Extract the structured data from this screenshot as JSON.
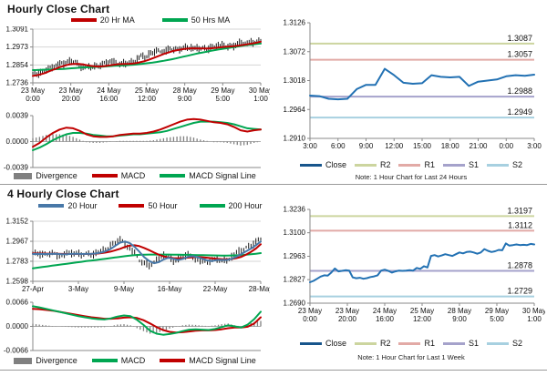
{
  "colors": {
    "red": "#c00000",
    "green": "#00a651",
    "steel_blue": "#4878a8",
    "close_blue": "#2271b3",
    "close_legend": "#17558c",
    "r2_olive": "#ccd59f",
    "r1_pink": "#e2aaa6",
    "s1_purple": "#a5a2cb",
    "s2_cyan": "#a7d0e0",
    "divergence_gray": "#808080",
    "candle_black": "#1a1a1a"
  },
  "chart_data": [
    {
      "title": "Hourly Close Chart",
      "type": "candlestick",
      "ylim": [
        1.2736,
        1.3091
      ],
      "yticks": [
        "1.3091",
        "1.2973",
        "1.2854",
        "1.2736"
      ],
      "xticks": [
        [
          "23 May",
          "0:00"
        ],
        [
          "23 May",
          "20:00"
        ],
        [
          "24 May",
          "16:00"
        ],
        [
          "25 May",
          "12:00"
        ],
        [
          "28 May",
          "9:00"
        ],
        [
          "29 May",
          "5:00"
        ],
        [
          "30 May",
          "1:00"
        ]
      ],
      "series": [
        {
          "name": "Close",
          "type": "candle",
          "color": "#1a1a1a",
          "values": [
            1.279,
            1.2794,
            1.28,
            1.2815,
            1.2832,
            1.2845,
            1.2852,
            1.2858,
            1.2862,
            1.2872,
            1.288,
            1.2876,
            1.2855,
            1.2842,
            1.2836,
            1.2838,
            1.2842,
            1.2848,
            1.286,
            1.2875,
            1.2878,
            1.287,
            1.2862,
            1.2858,
            1.2866,
            1.2872,
            1.288,
            1.2895,
            1.291,
            1.2902,
            1.292,
            1.2938,
            1.2948,
            1.295,
            1.2944,
            1.2952,
            1.2956,
            1.2955,
            1.296,
            1.2968,
            1.2975,
            1.2968,
            1.2958,
            1.2962,
            1.2966,
            1.2958,
            1.297,
            1.2982,
            1.299,
            1.298,
            1.2974,
            1.2976,
            1.2982,
            1.2995,
            1.3008,
            1.3,
            1.2995,
            1.3,
            1.3006,
            1.3014
          ]
        },
        {
          "name": "20 Hr MA",
          "type": "line",
          "color": "#c00000",
          "values": [
            1.2782,
            1.2786,
            1.2792,
            1.28,
            1.281,
            1.282,
            1.283,
            1.284,
            1.2848,
            1.2855,
            1.286,
            1.2862,
            1.2861,
            1.2858,
            1.2853,
            1.2848,
            1.2845,
            1.2844,
            1.2845,
            1.2848,
            1.2852,
            1.2856,
            1.2859,
            1.286,
            1.2861,
            1.2862,
            1.2864,
            1.2868,
            1.2874,
            1.288,
            1.2888,
            1.2898,
            1.2908,
            1.2918,
            1.2928,
            1.2936,
            1.2944,
            1.295,
            1.2955,
            1.2959,
            1.2962,
            1.2964,
            1.2964,
            1.2963,
            1.2963,
            1.2963,
            1.2964,
            1.2966,
            1.2969,
            1.2972,
            1.2974,
            1.2976,
            1.2978,
            1.2981,
            1.2985,
            1.2989,
            1.2993,
            1.2997,
            1.3002,
            1.3008
          ]
        },
        {
          "name": "50 Hrs MA",
          "type": "line",
          "color": "#00a651",
          "values": [
            1.282,
            1.2821,
            1.2822,
            1.2823,
            1.2824,
            1.2825,
            1.2826,
            1.2827,
            1.2828,
            1.283,
            1.2832,
            1.2834,
            1.2836,
            1.2838,
            1.2839,
            1.284,
            1.2841,
            1.2842,
            1.2843,
            1.2845,
            1.2847,
            1.2849,
            1.285,
            1.2851,
            1.2852,
            1.2854,
            1.2856,
            1.2858,
            1.2861,
            1.2864,
            1.2867,
            1.287,
            1.2874,
            1.2878,
            1.2882,
            1.2887,
            1.2892,
            1.2897,
            1.2903,
            1.2909,
            1.2915,
            1.2921,
            1.2927,
            1.2932,
            1.2937,
            1.2942,
            1.2947,
            1.2952,
            1.2956,
            1.296,
            1.2964,
            1.2968,
            1.2972,
            1.2976,
            1.298,
            1.2984,
            1.2987,
            1.299,
            1.2993,
            1.2996
          ]
        }
      ]
    },
    {
      "type": "macd",
      "ylim": [
        -0.0039,
        0.0039
      ],
      "yticks": [
        "0.0039",
        "0.0000",
        "-0.0039"
      ],
      "series": [
        {
          "name": "Divergence",
          "type": "bar",
          "color": "#808080",
          "values": [
            0.0005,
            0.0007,
            0.001,
            0.0011,
            0.0011,
            0.001,
            0.0007,
            0.0003,
            -0.0001,
            -0.0002,
            -0.0002,
            -0.0001,
            0.0,
            0.0001,
            0.0001,
            0.0001,
            0.0001,
            0.0001,
            0.0002,
            0.0004,
            0.0006,
            0.0007,
            0.0008,
            0.0008,
            0.0006,
            0.0003,
            0.0001,
            -0.0001,
            -0.0001,
            -0.0002,
            -0.0004,
            -0.0006,
            -0.0005,
            -0.0002,
            0.0
          ]
        },
        {
          "name": "MACD",
          "type": "line",
          "color": "#c00000",
          "values": [
            -0.0008,
            -0.0002,
            0.0006,
            0.0013,
            0.0018,
            0.0021,
            0.002,
            0.0016,
            0.0011,
            0.0008,
            0.0007,
            0.0007,
            0.0008,
            0.001,
            0.0011,
            0.0012,
            0.0012,
            0.0013,
            0.0015,
            0.0018,
            0.0022,
            0.0026,
            0.003,
            0.0033,
            0.0034,
            0.0033,
            0.0031,
            0.0029,
            0.0028,
            0.0026,
            0.0022,
            0.0017,
            0.0015,
            0.0017,
            0.0018
          ]
        },
        {
          "name": "MACD Signal Line",
          "type": "line",
          "color": "#00a651",
          "values": [
            -0.0013,
            -0.0009,
            -0.0004,
            0.0002,
            0.0007,
            0.0011,
            0.0013,
            0.0013,
            0.0012,
            0.001,
            0.0009,
            0.0008,
            0.0008,
            0.0009,
            0.001,
            0.0011,
            0.0011,
            0.0012,
            0.0013,
            0.0014,
            0.0016,
            0.0019,
            0.0022,
            0.0025,
            0.0028,
            0.003,
            0.003,
            0.003,
            0.0029,
            0.0028,
            0.0026,
            0.0023,
            0.002,
            0.0019,
            0.0018
          ]
        }
      ]
    },
    {
      "type": "line",
      "note": "Note: 1 Hour Chart for Last 24 Hours",
      "ylim": [
        1.291,
        1.3126
      ],
      "yticks": [
        "1.3126",
        "1.3072",
        "1.3018",
        "1.2964",
        "1.2910"
      ],
      "xticks": [
        "3:00",
        "6:00",
        "9:00",
        "12:00",
        "15:00",
        "18:00",
        "21:00",
        "0:00",
        "3:00"
      ],
      "series": [
        {
          "name": "Close",
          "type": "line",
          "color": "#2271b3",
          "legend_color": "#17558c",
          "values": [
            1.299,
            1.2989,
            1.2984,
            1.2983,
            1.2984,
            1.3002,
            1.301,
            1.301,
            1.304,
            1.3028,
            1.3014,
            1.3012,
            1.3013,
            1.3028,
            1.3025,
            1.3024,
            1.3025,
            1.3008,
            1.3016,
            1.3018,
            1.302,
            1.3026,
            1.3028,
            1.3027,
            1.3029
          ]
        }
      ],
      "levels": [
        {
          "name": "R2",
          "label": "1.3087",
          "value": 1.3087,
          "color": "#ccd59f"
        },
        {
          "name": "R1",
          "label": "1.3057",
          "value": 1.3057,
          "color": "#e2aaa6"
        },
        {
          "name": "S1",
          "label": "1.2988",
          "value": 1.2988,
          "color": "#a5a2cb"
        },
        {
          "name": "S2",
          "label": "1.2949",
          "value": 1.2949,
          "color": "#a7d0e0"
        }
      ]
    },
    {
      "title": "4 Hourly Close Chart",
      "type": "candlestick",
      "ylim": [
        1.2598,
        1.3152
      ],
      "yticks": [
        "1.3152",
        "1.2967",
        "1.2783",
        "1.2598"
      ],
      "xticks": [
        "27-Apr",
        "3-May",
        "9-May",
        "16-May",
        "22-May",
        "28-May"
      ],
      "series": [
        {
          "name": "Close",
          "type": "candle",
          "color": "#1a1a1a",
          "values": [
            1.2848,
            1.2855,
            1.284,
            1.2852,
            1.286,
            1.2845,
            1.2838,
            1.285,
            1.2858,
            1.2852,
            1.2845,
            1.2855,
            1.285,
            1.2862,
            1.287,
            1.289,
            1.292,
            1.296,
            1.2985,
            1.295,
            1.29,
            1.285,
            1.279,
            1.276,
            1.2748,
            1.277,
            1.282,
            1.284,
            1.281,
            1.278,
            1.28,
            1.2835,
            1.2845,
            1.282,
            1.28,
            1.278,
            1.277,
            1.279,
            1.281,
            1.2785,
            1.28,
            1.2825,
            1.2855,
            1.288,
            1.2905,
            1.293,
            1.296,
            1.3
          ]
        },
        {
          "name": "20 Hour",
          "type": "line",
          "color": "#4878a8",
          "values": [
            1.285,
            1.2851,
            1.285,
            1.285,
            1.2852,
            1.2851,
            1.2848,
            1.2848,
            1.2851,
            1.2852,
            1.285,
            1.2851,
            1.2851,
            1.2855,
            1.2862,
            1.2875,
            1.2895,
            1.2925,
            1.2955,
            1.2965,
            1.295,
            1.2915,
            1.287,
            1.282,
            1.2785,
            1.2765,
            1.2775,
            1.28,
            1.2815,
            1.2805,
            1.2795,
            1.2805,
            1.2825,
            1.283,
            1.282,
            1.2805,
            1.279,
            1.2785,
            1.2795,
            1.2795,
            1.2795,
            1.2805,
            1.2825,
            1.285,
            1.2875,
            1.29,
            1.293,
            1.2965
          ]
        },
        {
          "name": "50 Hour",
          "type": "line",
          "color": "#c00000",
          "values": [
            1.2855,
            1.2855,
            1.2854,
            1.2853,
            1.2853,
            1.2852,
            1.2851,
            1.285,
            1.285,
            1.285,
            1.285,
            1.285,
            1.2851,
            1.2853,
            1.2857,
            1.2863,
            1.2872,
            1.2884,
            1.2898,
            1.2915,
            1.2928,
            1.293,
            1.2922,
            1.2905,
            1.2885,
            1.2863,
            1.2843,
            1.2828,
            1.2818,
            1.2812,
            1.281,
            1.2812,
            1.2816,
            1.282,
            1.2822,
            1.282,
            1.2815,
            1.281,
            1.2806,
            1.2803,
            1.2802,
            1.2804,
            1.2812,
            1.2824,
            1.2845,
            1.287,
            1.29,
            1.294
          ]
        },
        {
          "name": "200 Hour",
          "type": "line",
          "color": "#00a651",
          "values": [
            1.2718,
            1.2724,
            1.273,
            1.2736,
            1.2742,
            1.2748,
            1.2754,
            1.276,
            1.2766,
            1.2772,
            1.2778,
            1.2784,
            1.2789,
            1.2794,
            1.28,
            1.2806,
            1.2812,
            1.2818,
            1.2824,
            1.283,
            1.2835,
            1.2839,
            1.2842,
            1.2844,
            1.2845,
            1.2845,
            1.2845,
            1.2845,
            1.2845,
            1.2844,
            1.2843,
            1.2842,
            1.2842,
            1.2841,
            1.284,
            1.2839,
            1.2838,
            1.2837,
            1.2836,
            1.2835,
            1.2835,
            1.2836,
            1.2838,
            1.284,
            1.2843,
            1.2847,
            1.2852,
            1.2858
          ]
        }
      ]
    },
    {
      "type": "macd",
      "ylim": [
        -0.0066,
        0.0066
      ],
      "yticks": [
        "0.0066",
        "0.0000",
        "-0.0066"
      ],
      "series": [
        {
          "name": "Divergence",
          "type": "bar",
          "color": "#808080",
          "values": [
            0.0007,
            0.0005,
            0.0003,
            0.0001,
            0.0,
            -0.0001,
            -0.0002,
            -0.0003,
            -0.0003,
            -0.0003,
            -0.0003,
            -0.0002,
            0.0001,
            0.0005,
            0.0006,
            0.0003,
            -0.0005,
            -0.0013,
            -0.002,
            -0.0018,
            -0.0013,
            -0.0006,
            -0.0001,
            0.0003,
            0.0005,
            0.0004,
            0.0002,
            0.0001,
            0.0003,
            0.0006,
            0.0008,
            0.0003,
            0.0,
            0.0006,
            0.0012,
            0.0015
          ]
        },
        {
          "name": "MACD",
          "type": "line",
          "color": "#00a651",
          "values": [
            0.0055,
            0.0052,
            0.0048,
            0.0044,
            0.004,
            0.0036,
            0.0032,
            0.0028,
            0.0025,
            0.0022,
            0.002,
            0.0019,
            0.0022,
            0.0027,
            0.003,
            0.0028,
            0.0018,
            0.0004,
            -0.0012,
            -0.002,
            -0.0023,
            -0.0021,
            -0.0018,
            -0.0013,
            -0.0009,
            -0.0008,
            -0.0009,
            -0.001,
            -0.0007,
            -0.0002,
            0.0003,
            0.0,
            -0.0003,
            0.0005,
            0.002,
            0.004
          ]
        },
        {
          "name": "MACD Signal Line",
          "type": "line",
          "color": "#c00000",
          "values": [
            0.0048,
            0.0047,
            0.0045,
            0.0043,
            0.004,
            0.0037,
            0.0034,
            0.0031,
            0.0028,
            0.0025,
            0.0023,
            0.0021,
            0.0021,
            0.0022,
            0.0024,
            0.0025,
            0.0023,
            0.0017,
            0.0008,
            -0.0002,
            -0.001,
            -0.0015,
            -0.0017,
            -0.0016,
            -0.0014,
            -0.0012,
            -0.0011,
            -0.0011,
            -0.001,
            -0.0008,
            -0.0005,
            -0.0003,
            -0.0003,
            -0.0001,
            0.0008,
            0.0025
          ]
        }
      ]
    },
    {
      "type": "line",
      "note": "Note: 1 Hour Chart for Last 1 Week",
      "ylim": [
        1.269,
        1.3236
      ],
      "yticks": [
        "1.3236",
        "1.3100",
        "1.2963",
        "1.2827",
        "1.2690"
      ],
      "xticks": [
        [
          "23 May",
          "0:00"
        ],
        [
          "23 May",
          "20:00"
        ],
        [
          "24 May",
          "16:00"
        ],
        [
          "25 May",
          "12:00"
        ],
        [
          "28 May",
          "9:00"
        ],
        [
          "29 May",
          "5:00"
        ],
        [
          "30 May",
          "1:00"
        ]
      ],
      "series": [
        {
          "name": "Close",
          "type": "line",
          "color": "#2271b3",
          "legend_color": "#17558c",
          "values": [
            1.2812,
            1.282,
            1.2832,
            1.2845,
            1.2852,
            1.285,
            1.2868,
            1.2892,
            1.2875,
            1.2878,
            1.2882,
            1.288,
            1.284,
            1.2835,
            1.2838,
            1.2832,
            1.2836,
            1.2842,
            1.2846,
            1.2852,
            1.288,
            1.2885,
            1.2878,
            1.2868,
            1.2875,
            1.288,
            1.2878,
            1.288,
            1.2882,
            1.288,
            1.2895,
            1.289,
            1.2905,
            1.2898,
            1.2965,
            1.297,
            1.2962,
            1.2968,
            1.2975,
            1.297,
            1.2965,
            1.2975,
            1.2985,
            1.298,
            1.2988,
            1.299,
            1.2985,
            1.2978,
            1.2985,
            1.3005,
            1.2995,
            1.2988,
            1.2992,
            1.3,
            1.2998,
            1.3038,
            1.3025,
            1.3028,
            1.3032,
            1.3028,
            1.303,
            1.3028,
            1.3035,
            1.3032
          ]
        }
      ],
      "levels": [
        {
          "name": "R2",
          "label": "1.3197",
          "value": 1.3197,
          "color": "#ccd59f"
        },
        {
          "name": "R1",
          "label": "1.3112",
          "value": 1.3112,
          "color": "#e2aaa6"
        },
        {
          "name": "S1",
          "label": "1.2878",
          "value": 1.2878,
          "color": "#a5a2cb"
        },
        {
          "name": "S2",
          "label": "1.2729",
          "value": 1.2729,
          "color": "#a7d0e0"
        }
      ]
    }
  ]
}
